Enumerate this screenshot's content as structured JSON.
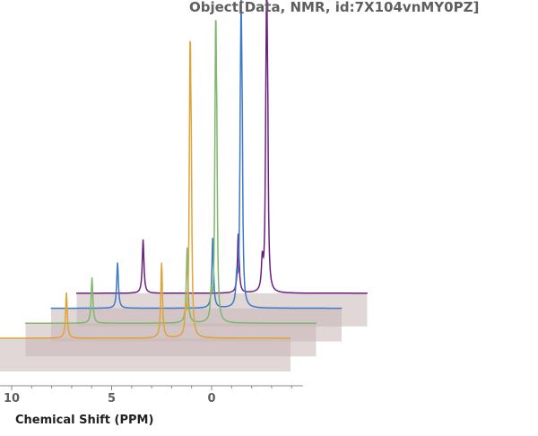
{
  "title": "Object[Data, NMR, id:7X104vnMY0PZ]",
  "colors": {
    "series": [
      "#E0A33A",
      "#7DB86B",
      "#3D78C9",
      "#6B2080"
    ],
    "panel": "#C9B6B6",
    "axis": "#888888",
    "text": "#5f5f5f"
  },
  "chart_data": {
    "type": "line",
    "xlabel": "Chemical Shift  (PPM)",
    "ylabel": "",
    "xlim": [
      12,
      -4.6
    ],
    "x_reversed": true,
    "x_ticks": [
      10,
      5,
      0
    ],
    "x_tick_labels": [
      "10",
      "5",
      "0"
    ],
    "style": "stacked waterfall (each spectrum offset in depth)",
    "grid": false,
    "series": [
      {
        "depth_index": 0,
        "color": "#E0A33A",
        "baseline": 0.02,
        "peaks": [
          {
            "x": 7.26,
            "y": 0.17,
            "width": 0.05
          },
          {
            "x": 2.5,
            "y": 0.28,
            "width": 0.05
          },
          {
            "x": 1.3,
            "y": 0.09,
            "width": 0.05
          },
          {
            "x": 1.1,
            "y": 0.35,
            "width": 0.04
          },
          {
            "x": 1.07,
            "y": 0.72,
            "width": 0.035
          },
          {
            "x": 1.02,
            "y": 0.5,
            "width": 0.04
          }
        ]
      },
      {
        "depth_index": 1,
        "color": "#7DB86B",
        "baseline": 0.02,
        "peaks": [
          {
            "x": 7.26,
            "y": 0.17,
            "width": 0.05
          },
          {
            "x": 2.5,
            "y": 0.28,
            "width": 0.05
          },
          {
            "x": 1.3,
            "y": 0.1,
            "width": 0.05
          },
          {
            "x": 1.1,
            "y": 0.33,
            "width": 0.04
          },
          {
            "x": 1.07,
            "y": 0.76,
            "width": 0.035
          },
          {
            "x": 1.02,
            "y": 0.5,
            "width": 0.04
          }
        ]
      },
      {
        "depth_index": 2,
        "color": "#3D78C9",
        "baseline": 0.02,
        "peaks": [
          {
            "x": 7.26,
            "y": 0.17,
            "width": 0.05
          },
          {
            "x": 2.5,
            "y": 0.26,
            "width": 0.05
          },
          {
            "x": 1.3,
            "y": 0.1,
            "width": 0.05
          },
          {
            "x": 1.12,
            "y": 0.38,
            "width": 0.04
          },
          {
            "x": 1.08,
            "y": 0.78,
            "width": 0.035
          },
          {
            "x": 1.03,
            "y": 0.5,
            "width": 0.04
          }
        ]
      },
      {
        "depth_index": 3,
        "color": "#6B2080",
        "baseline": 0.02,
        "peaks": [
          {
            "x": 7.26,
            "y": 0.2,
            "width": 0.05
          },
          {
            "x": 2.5,
            "y": 0.22,
            "width": 0.05
          },
          {
            "x": 1.3,
            "y": 0.11,
            "width": 0.05
          },
          {
            "x": 1.12,
            "y": 0.35,
            "width": 0.04
          },
          {
            "x": 1.08,
            "y": 0.82,
            "width": 0.035
          },
          {
            "x": 1.03,
            "y": 0.48,
            "width": 0.04
          }
        ]
      }
    ]
  }
}
